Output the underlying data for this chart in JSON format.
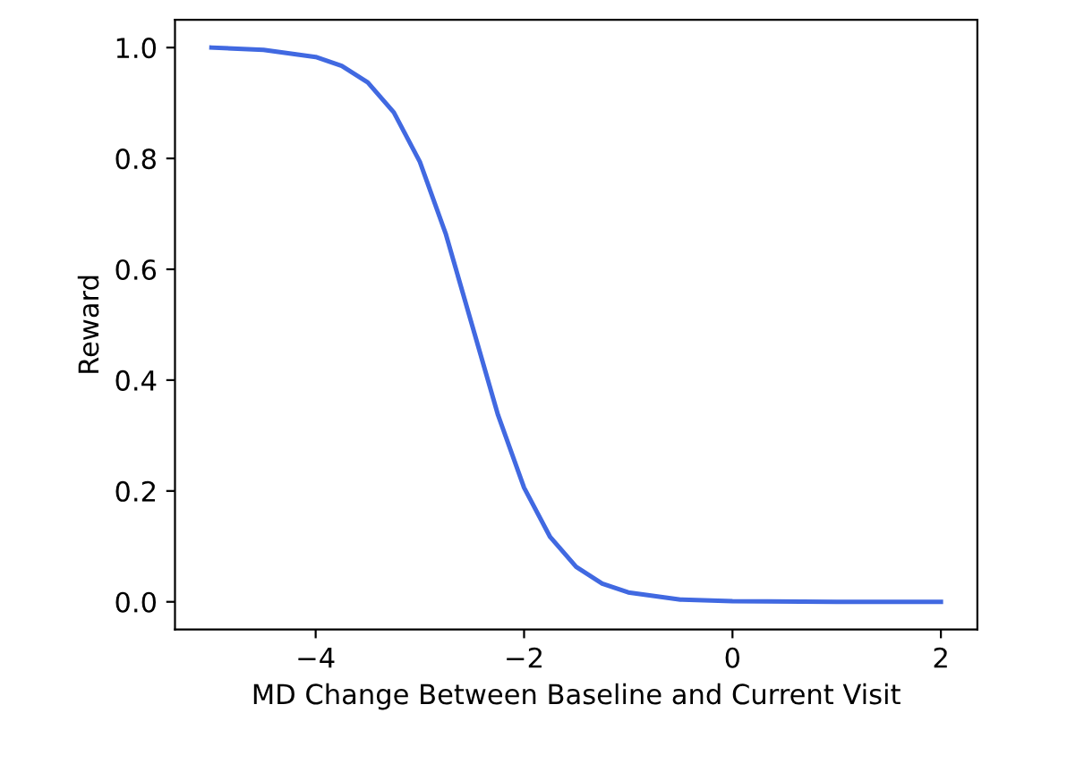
{
  "chart_data": {
    "type": "line",
    "xlabel": "MD Change Between Baseline and Current Visit",
    "ylabel": "Reward",
    "series": [
      {
        "color": "#4169e1",
        "x": [
          -5,
          -4.5,
          -4,
          -3.75,
          -3.5,
          -3.25,
          -3,
          -2.75,
          -2.5,
          -2.25,
          -2,
          -1.75,
          -1.5,
          -1.25,
          -1,
          -0.5,
          0,
          1,
          2
        ],
        "values": [
          1.0,
          0.996,
          0.983,
          0.967,
          0.937,
          0.883,
          0.794,
          0.663,
          0.5,
          0.337,
          0.206,
          0.117,
          0.063,
          0.033,
          0.017,
          0.004,
          0.001,
          0.0,
          0.0
        ]
      }
    ],
    "xlim": [
      -5.35,
      2.35
    ],
    "ylim": [
      -0.05,
      1.05
    ],
    "xticks": [
      {
        "value": -4,
        "label": "−4"
      },
      {
        "value": -2,
        "label": "−2"
      },
      0,
      2
    ],
    "yticks": [
      {
        "value": 0,
        "label": "0.0"
      },
      {
        "value": 0.2,
        "label": "0.2"
      },
      {
        "value": 0.4,
        "label": "0.4"
      },
      {
        "value": 0.6,
        "label": "0.6"
      },
      {
        "value": 0.8,
        "label": "0.8"
      },
      {
        "value": 1,
        "label": "1.0"
      }
    ],
    "grid": false,
    "legend": false,
    "marker": "none",
    "line_style": "solid"
  }
}
